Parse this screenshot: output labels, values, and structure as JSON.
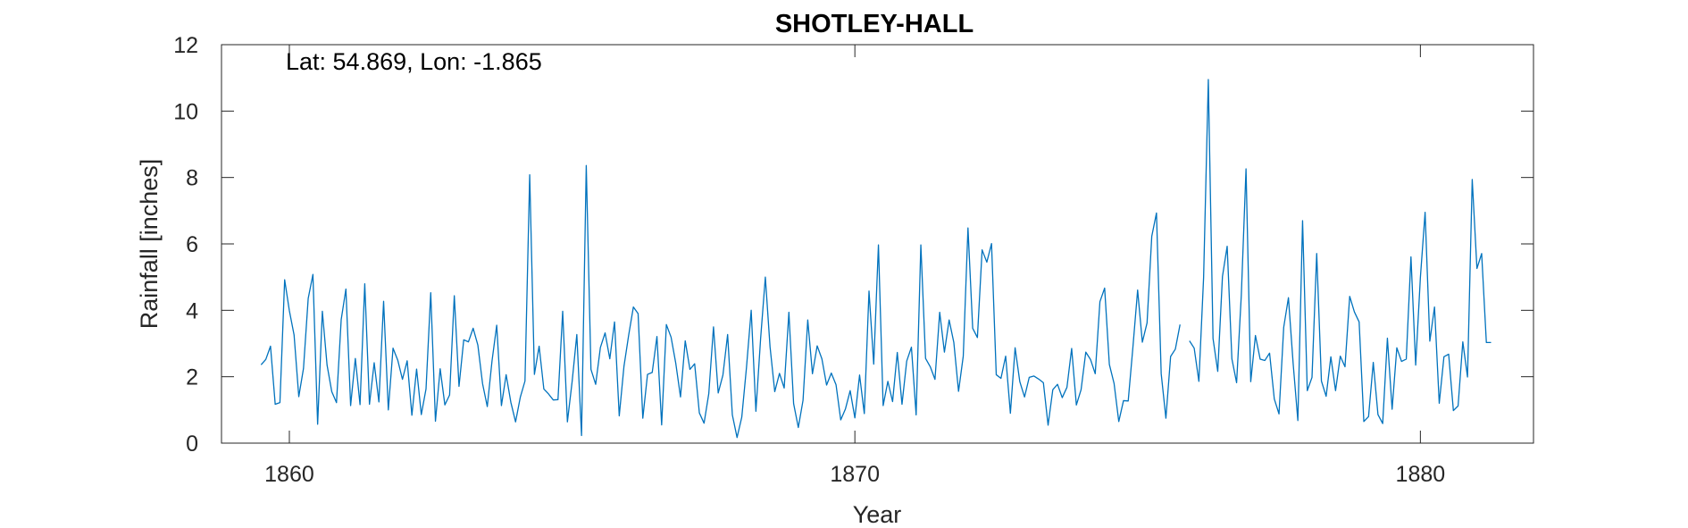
{
  "chart_data": {
    "type": "line",
    "title": "SHOTLEY-HALL",
    "annotation": "Lat: 54.869, Lon: -1.865",
    "xlabel": "Year",
    "ylabel": "Rainfall [inches]",
    "xlim": [
      1858.8,
      1882.0
    ],
    "ylim": [
      0,
      12
    ],
    "x_ticks": [
      1860,
      1870,
      1880
    ],
    "y_ticks": [
      0,
      2,
      4,
      6,
      8,
      10,
      12
    ],
    "grid": false,
    "line_color": "#0072BD",
    "series": [
      {
        "start": [
          1859,
          7
        ],
        "values": [
          2.36,
          2.52,
          2.92,
          1.17,
          1.22,
          4.92,
          3.99,
          3.26,
          1.4,
          2.25,
          4.36,
          5.08,
          0.57,
          3.97,
          2.35,
          1.55,
          1.22,
          3.72,
          4.64,
          1.13,
          2.55,
          1.16,
          4.8,
          1.17,
          2.42,
          1.24,
          4.27,
          1.0,
          2.86,
          2.5,
          1.92,
          2.48,
          0.84,
          2.23,
          0.86,
          1.63,
          4.53,
          0.66,
          2.24,
          1.15,
          1.45,
          4.44,
          1.71,
          3.11,
          3.05,
          3.46,
          2.95,
          1.79,
          1.1,
          2.47,
          3.55,
          1.13,
          2.06,
          1.23,
          0.64,
          1.38,
          1.87,
          8.08,
          2.07,
          2.92,
          1.63,
          1.48,
          1.3,
          1.31,
          3.97,
          0.64,
          1.85,
          3.27,
          0.23,
          8.36,
          2.22,
          1.77,
          2.88,
          3.32,
          2.54,
          3.65,
          0.82,
          2.31,
          3.25,
          4.1,
          3.9,
          0.75,
          2.07,
          2.13,
          3.21,
          0.55,
          3.57,
          3.19,
          2.4,
          1.39,
          3.08,
          2.22,
          2.39,
          0.91,
          0.6,
          1.49,
          3.5,
          1.51,
          2.05,
          3.27,
          0.85,
          0.17,
          0.78,
          2.28,
          4.0,
          0.96,
          3.15,
          5.0,
          2.9,
          1.55,
          2.1,
          1.66,
          3.94,
          1.19,
          0.47,
          1.29,
          3.71,
          2.09,
          2.93,
          2.54,
          1.75,
          2.11,
          1.76,
          0.7,
          1.03,
          1.58,
          0.76,
          2.05,
          0.89,
          4.58,
          2.38,
          5.97,
          1.13,
          1.86,
          1.25,
          2.73,
          1.17,
          2.47,
          2.89,
          0.85,
          5.97,
          2.55,
          2.3,
          1.92,
          3.94,
          2.74,
          3.71,
          3.03,
          1.56,
          2.62,
          6.48,
          3.46,
          3.18,
          5.82,
          5.45,
          6.01,
          2.06,
          1.95,
          2.62,
          0.9,
          2.87,
          1.85,
          1.39,
          1.98,
          2.02,
          1.93,
          1.82,
          0.54,
          1.61,
          1.77,
          1.37,
          1.68,
          2.85,
          1.15,
          1.61,
          2.74,
          2.52,
          2.09,
          4.26,
          4.67,
          2.37,
          1.8,
          0.65,
          1.28,
          1.27,
          2.89,
          4.61,
          3.04,
          3.62,
          6.23,
          6.93,
          2.09,
          0.75,
          2.61,
          2.83,
          3.57,
          null,
          3.08,
          2.86,
          1.86,
          4.99,
          10.95,
          3.15,
          2.16,
          5.02,
          5.93,
          2.54,
          1.82,
          4.45,
          8.26,
          1.85,
          3.24,
          2.53,
          2.49,
          2.71,
          1.33,
          0.88,
          3.49,
          4.38,
          2.4,
          0.68,
          6.7,
          1.58,
          1.98,
          5.71,
          1.87,
          1.41,
          2.6,
          1.58,
          2.62,
          2.3,
          4.42,
          3.95,
          3.65,
          0.65,
          0.8,
          2.43,
          0.86,
          0.59,
          3.16,
          1.02,
          2.87,
          2.46,
          2.53,
          5.61,
          2.35,
          4.99,
          6.95,
          3.07,
          4.1,
          1.2,
          2.6,
          2.68,
          0.98,
          1.12,
          3.05,
          1.99,
          7.94,
          5.26,
          5.71,
          3.03,
          3.03
        ]
      }
    ]
  }
}
